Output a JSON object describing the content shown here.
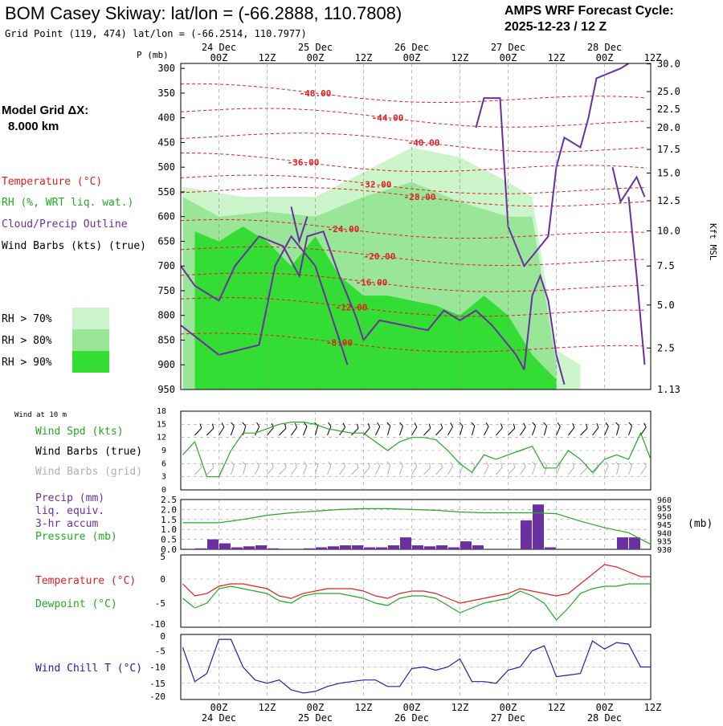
{
  "header": {
    "title": "BOM Casey Skiway:  lat/lon = (-66.2888, 110.7808)",
    "subtitle": "Grid Point (119, 474) lat/lon = (-66.2514, 110.7977)",
    "cycle_line1": "AMPS WRF Forecast Cycle:",
    "cycle_line2": "2025-12-23 / 12  Z"
  },
  "time_axis": {
    "hours": [
      0,
      6,
      12,
      18,
      24,
      30,
      36,
      42,
      48,
      54,
      60,
      66,
      72,
      78,
      84,
      90,
      96,
      102
    ],
    "tick_labels": [
      "00Z",
      "12Z",
      "00Z",
      "12Z",
      "00Z",
      "12Z",
      "00Z",
      "12Z",
      "00Z",
      "12Z"
    ],
    "tick_hours": [
      6,
      18,
      30,
      42,
      54,
      66,
      78,
      90,
      102,
      114
    ],
    "date_labels": [
      "24 Dec",
      "25 Dec",
      "26 Dec",
      "27 Dec",
      "28 Dec"
    ],
    "date_hours": [
      6,
      30,
      54,
      78,
      102
    ],
    "xlim_hours": [
      -3.5,
      113.5
    ]
  },
  "chart_data": [
    {
      "type": "heatmap",
      "name": "Vertical cross-section",
      "y_axis_label": "P (mb)",
      "pressure_levels": [
        300,
        350,
        400,
        450,
        500,
        550,
        600,
        650,
        700,
        750,
        800,
        850,
        900,
        950
      ],
      "right_axis_label": "Kft MSL",
      "kft_ticks": [
        "30.0",
        "25.0",
        "22.5",
        "20.0",
        "17.5",
        "15.0",
        "12.5",
        "10.0",
        "7.5",
        "5.0",
        "2.5",
        "1.13"
      ],
      "kft_tick_pressure": [
        291,
        347,
        383,
        420,
        464,
        512,
        568,
        629,
        700,
        779,
        866,
        950
      ],
      "model_grid_label": "Model Grid ΔX:",
      "model_grid_value": "8.000 km",
      "legend": {
        "temperature": {
          "label": "Temperature (°C)",
          "color": "#e02020"
        },
        "rh": {
          "label": "RH (%, WRT liq. wat.)",
          "color": "#22aa22"
        },
        "cloud": {
          "label": "Cloud/Precip Outline",
          "color": "#6a2fa0"
        },
        "wind": {
          "label": "Wind Barbs (kts) (true)",
          "color": "#000000"
        }
      },
      "rh_legend": [
        {
          "label": "RH > 70%",
          "color": "#ccf5cc"
        },
        {
          "label": "RH > 80%",
          "color": "#99e699"
        },
        {
          "label": "RH > 90%",
          "color": "#33dd33"
        }
      ],
      "isotherm_labels": [
        {
          "text": "-48.00",
          "t": 30,
          "p": 350
        },
        {
          "text": "-44.00",
          "t": 48,
          "p": 400
        },
        {
          "text": "-40.00",
          "t": 57,
          "p": 450
        },
        {
          "text": "-36.00",
          "t": 27,
          "p": 490
        },
        {
          "text": "-32.00",
          "t": 45,
          "p": 535
        },
        {
          "text": "-28.00",
          "t": 56,
          "p": 560
        },
        {
          "text": "-24.00",
          "t": 37,
          "p": 625
        },
        {
          "text": "-20.00",
          "t": 46,
          "p": 680
        },
        {
          "text": "-16.00",
          "t": 44,
          "p": 733
        },
        {
          "text": "-12.00",
          "t": 39,
          "p": 783
        },
        {
          "text": "-8.00",
          "t": 36,
          "p": 855
        }
      ],
      "rh_over_90": [
        {
          "t": 0,
          "top": 630,
          "bottom": 950
        },
        {
          "t": 6,
          "top": 650,
          "bottom": 950
        },
        {
          "t": 12,
          "top": 620,
          "bottom": 950
        },
        {
          "t": 18,
          "top": 650,
          "bottom": 950
        },
        {
          "t": 24,
          "top": 700,
          "bottom": 950
        },
        {
          "t": 30,
          "top": 640,
          "bottom": 950
        },
        {
          "t": 36,
          "top": 720,
          "bottom": 950
        },
        {
          "t": 42,
          "top": 760,
          "bottom": 950
        },
        {
          "t": 48,
          "top": 760,
          "bottom": 950
        },
        {
          "t": 54,
          "top": 770,
          "bottom": 950
        },
        {
          "t": 60,
          "top": 780,
          "bottom": 950
        },
        {
          "t": 66,
          "top": 800,
          "bottom": 950
        },
        {
          "t": 72,
          "top": 760,
          "bottom": 950
        },
        {
          "t": 78,
          "top": 800,
          "bottom": 950
        },
        {
          "t": 84,
          "top": 880,
          "bottom": 950
        },
        {
          "t": 90,
          "top": 930,
          "bottom": 950
        }
      ],
      "rh_over_80": [
        {
          "t": -3,
          "top": 560,
          "bottom": 950
        },
        {
          "t": 6,
          "top": 600,
          "bottom": 950
        },
        {
          "t": 18,
          "top": 590,
          "bottom": 950
        },
        {
          "t": 30,
          "top": 600,
          "bottom": 950
        },
        {
          "t": 42,
          "top": 560,
          "bottom": 950
        },
        {
          "t": 54,
          "top": 530,
          "bottom": 950
        },
        {
          "t": 66,
          "top": 570,
          "bottom": 950
        },
        {
          "t": 78,
          "top": 600,
          "bottom": 950
        },
        {
          "t": 84,
          "top": 600,
          "bottom": 950
        },
        {
          "t": 90,
          "top": 900,
          "bottom": 950
        }
      ],
      "rh_over_70": [
        {
          "t": -3,
          "top": 540,
          "bottom": 950
        },
        {
          "t": 12,
          "top": 560,
          "bottom": 950
        },
        {
          "t": 30,
          "top": 560,
          "bottom": 950
        },
        {
          "t": 42,
          "top": 510,
          "bottom": 950
        },
        {
          "t": 54,
          "top": 460,
          "bottom": 950
        },
        {
          "t": 66,
          "top": 480,
          "bottom": 950
        },
        {
          "t": 78,
          "top": 530,
          "bottom": 950
        },
        {
          "t": 84,
          "top": 560,
          "bottom": 950
        },
        {
          "t": 90,
          "top": 870,
          "bottom": 950
        },
        {
          "t": 96,
          "top": 900,
          "bottom": 950
        }
      ],
      "wind_cols": [
        0,
        3,
        6,
        9,
        12,
        15,
        18,
        21,
        24,
        27,
        30,
        33,
        36,
        39,
        42,
        45,
        48,
        51,
        54,
        57,
        60,
        63,
        66,
        69,
        72,
        75,
        78,
        81,
        84,
        87,
        90,
        93,
        96,
        99,
        102,
        105,
        108,
        111
      ],
      "wind_rows": [
        300,
        325,
        350,
        375,
        400,
        425,
        450,
        475,
        500,
        525,
        550,
        575,
        600,
        625,
        650,
        675,
        700,
        725,
        750,
        775,
        800,
        825,
        850,
        875,
        900,
        925
      ]
    },
    {
      "type": "line",
      "name": "Wind at 10 m",
      "panel_label": "Wind at 10 m",
      "ylim": [
        0,
        18
      ],
      "yticks": [
        0,
        3,
        6,
        9,
        12,
        15,
        18
      ],
      "legend": [
        {
          "label": "Wind Spd (kts)",
          "color": "#22aa22"
        },
        {
          "label": "Wind Barbs (true)",
          "color": "#000000"
        },
        {
          "label": "Wind Barbs (grid)",
          "color": "#b0b0b0"
        }
      ],
      "x_hours": [
        -3,
        0,
        3,
        6,
        9,
        12,
        15,
        18,
        21,
        24,
        27,
        30,
        33,
        36,
        39,
        42,
        45,
        48,
        51,
        54,
        57,
        60,
        63,
        66,
        69,
        72,
        75,
        78,
        81,
        84,
        87,
        90,
        93,
        96,
        99,
        102,
        105,
        108,
        111,
        114
      ],
      "wind_speed": [
        8,
        11,
        3,
        3,
        9,
        13,
        13,
        14,
        15,
        15.5,
        15.5,
        15,
        14,
        13.5,
        13,
        13,
        11,
        9,
        11,
        12,
        12,
        11.5,
        9,
        6,
        4,
        8,
        7,
        8,
        9,
        10,
        5,
        5,
        9,
        7,
        4,
        7,
        8,
        7,
        13,
        7
      ]
    },
    {
      "type": "bar",
      "name": "Precipitation and Pressure",
      "legend": [
        {
          "label": "Precip (mm)",
          "color": "#6a2fa0"
        },
        {
          "label": "liq. equiv.",
          "color": "#6a2fa0"
        },
        {
          "label": "3-hr accum",
          "color": "#6a2fa0"
        },
        {
          "label": "Pressure (mb)",
          "color": "#22aa22"
        }
      ],
      "right_unit": "(mb)",
      "precip_ylim": [
        0,
        2.5
      ],
      "precip_yticks": [
        "0.0",
        "0.5",
        "1.0",
        "1.5",
        "2.0",
        "2.5"
      ],
      "pressure_ylim": [
        930,
        960
      ],
      "pressure_yticks": [
        "930",
        "935",
        "940",
        "945",
        "950",
        "955",
        "960"
      ],
      "precip_hours": [
        3,
        6,
        9,
        12,
        15,
        18,
        21,
        24,
        27,
        30,
        33,
        36,
        39,
        42,
        45,
        48,
        51,
        54,
        57,
        60,
        63,
        66,
        69,
        72,
        75,
        78,
        81,
        84,
        87,
        90,
        93,
        96,
        99,
        102,
        105,
        108,
        111
      ],
      "precip_values": [
        0.05,
        0.5,
        0.3,
        0.1,
        0.15,
        0.2,
        0.05,
        0.0,
        0.0,
        0.05,
        0.1,
        0.15,
        0.2,
        0.2,
        0.1,
        0.1,
        0.2,
        0.6,
        0.2,
        0.15,
        0.2,
        0.1,
        0.4,
        0.2,
        0.0,
        0.0,
        0.0,
        1.45,
        2.25,
        0.1,
        0.0,
        0.0,
        0.0,
        0.0,
        0.0,
        0.6,
        0.6
      ],
      "pressure_hours": [
        -3,
        0,
        6,
        12,
        18,
        24,
        30,
        36,
        42,
        48,
        54,
        60,
        66,
        72,
        78,
        84,
        90,
        96,
        102,
        108,
        114
      ],
      "pressure_values": [
        946,
        946,
        946,
        948,
        950.5,
        952,
        953,
        954,
        954.5,
        954.5,
        954,
        953.5,
        952.5,
        952,
        952,
        952,
        951.5,
        947,
        943,
        940,
        933
      ]
    },
    {
      "type": "line",
      "name": "Temperature and Dewpoint",
      "ylim": [
        -10,
        5
      ],
      "yticks": [
        -10,
        -5,
        0,
        5
      ],
      "legend": [
        {
          "label": "Temperature (°C)",
          "color": "#e02020"
        },
        {
          "label": "Dewpoint (°C)",
          "color": "#22aa22"
        }
      ],
      "x_hours": [
        -3,
        0,
        3,
        6,
        9,
        12,
        15,
        18,
        21,
        24,
        27,
        30,
        33,
        36,
        39,
        42,
        45,
        48,
        51,
        54,
        57,
        60,
        63,
        66,
        69,
        72,
        75,
        78,
        81,
        84,
        87,
        90,
        93,
        96,
        99,
        102,
        105,
        108,
        111,
        114
      ],
      "temperature": [
        -1,
        -3.5,
        -3,
        -1.5,
        -1,
        -1,
        -1.5,
        -2,
        -3.5,
        -4,
        -3,
        -2.5,
        -2,
        -2,
        -2,
        -2.5,
        -3.5,
        -4,
        -3,
        -2.5,
        -2.5,
        -3,
        -4,
        -5,
        -4.5,
        -4,
        -3.5,
        -3,
        -2,
        -2.5,
        -3,
        -3.5,
        -3,
        -1,
        1,
        3,
        2.5,
        1.5,
        0.5,
        0.5
      ],
      "dewpoint": [
        -4,
        -6,
        -5,
        -2,
        -1.5,
        -2,
        -2.5,
        -3,
        -4.5,
        -5,
        -3.5,
        -3,
        -3,
        -3,
        -3.5,
        -4,
        -5,
        -5.5,
        -4,
        -3.5,
        -3.5,
        -4,
        -5.5,
        -7,
        -6,
        -5,
        -4.5,
        -4,
        -2.5,
        -3.5,
        -5,
        -8.5,
        -6,
        -3,
        -2,
        -1.5,
        -1.5,
        -1,
        -1,
        -1
      ]
    },
    {
      "type": "line",
      "name": "Wind Chill",
      "ylim": [
        -20,
        0
      ],
      "yticks": [
        -20,
        -15,
        -10,
        -5,
        0
      ],
      "legend": [
        {
          "label": "Wind Chill T (°C)",
          "color": "#2020aa"
        }
      ],
      "x_hours": [
        -3,
        0,
        3,
        6,
        9,
        12,
        15,
        18,
        21,
        24,
        27,
        30,
        33,
        36,
        39,
        42,
        45,
        48,
        51,
        54,
        57,
        60,
        63,
        66,
        69,
        72,
        75,
        78,
        81,
        84,
        87,
        90,
        93,
        96,
        99,
        102,
        105,
        108,
        111,
        114
      ],
      "wind_chill": [
        -4,
        -14.5,
        -12,
        -1.5,
        -1.5,
        -10,
        -14,
        -15,
        -14,
        -17,
        -18,
        -17.5,
        -16,
        -15,
        -14.5,
        -14,
        -14,
        -16,
        -16,
        -10.5,
        -10,
        -11,
        -10,
        -7.5,
        -14.5,
        -14.5,
        -15,
        -11,
        -10,
        -5,
        -3.5,
        -13,
        -12.5,
        -12,
        -2,
        -4.5,
        -2.5,
        -3,
        -10,
        -10
      ]
    }
  ]
}
